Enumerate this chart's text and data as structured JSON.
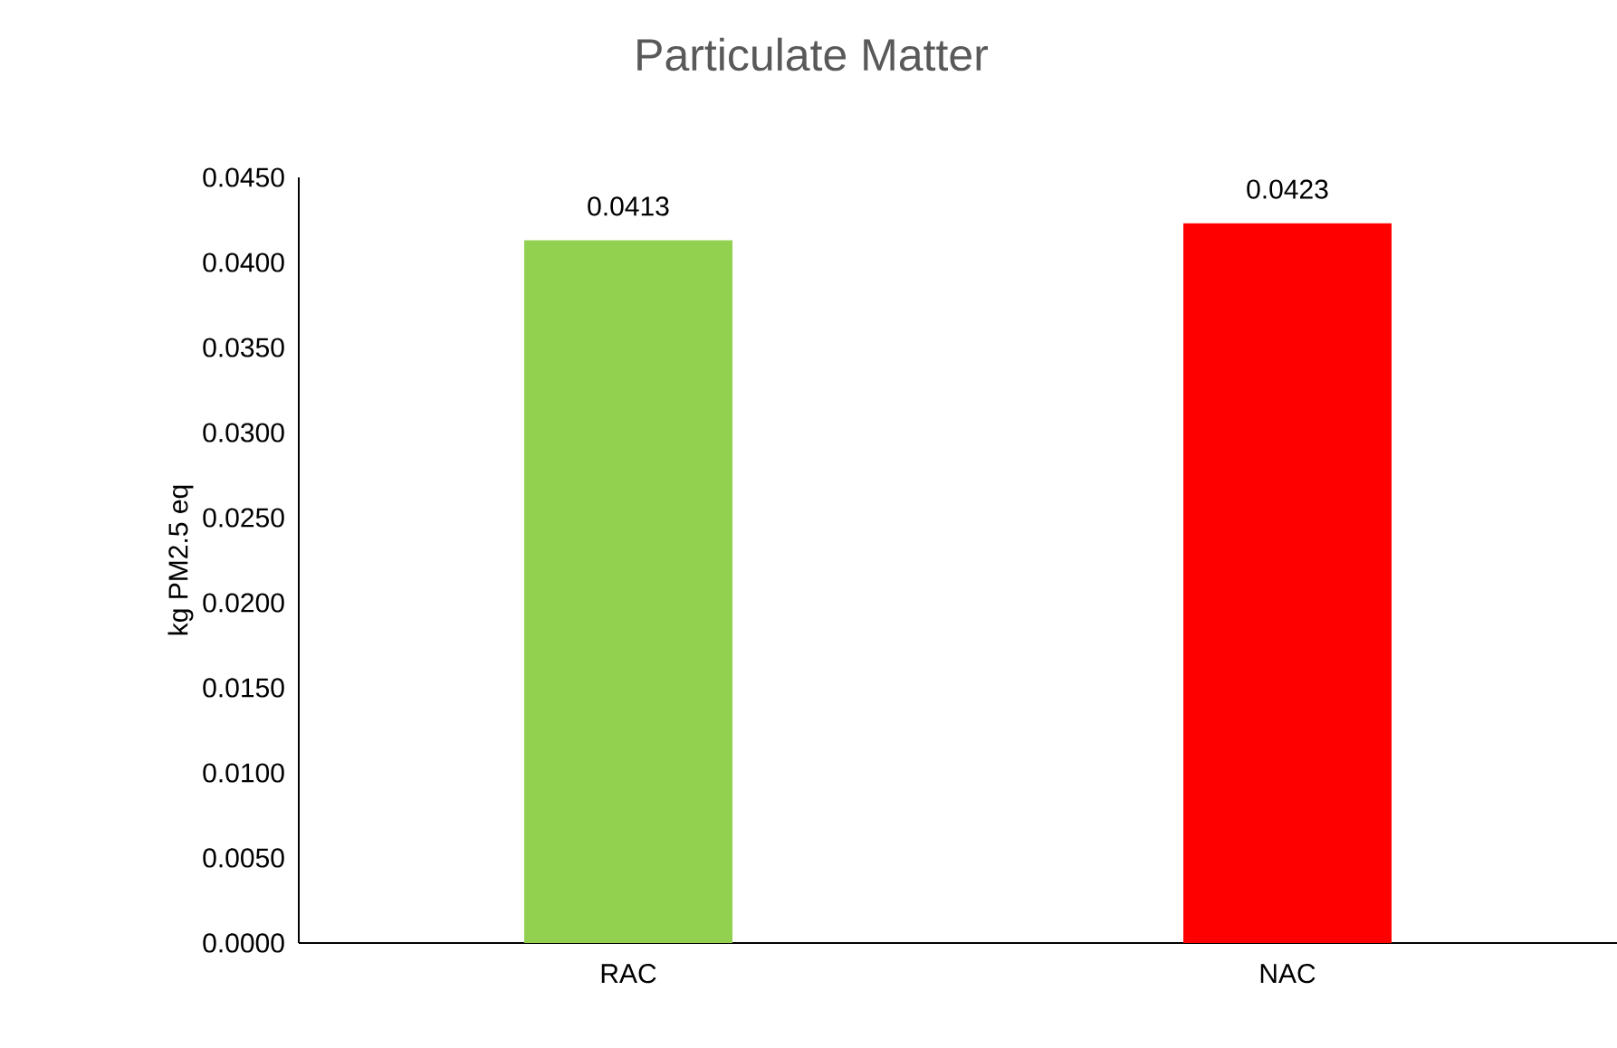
{
  "chart_data": {
    "type": "bar",
    "title": "Particulate Matter",
    "ylabel": "kg PM2.5 eq",
    "categories": [
      "RAC",
      "NAC"
    ],
    "values": [
      0.0413,
      0.0423
    ],
    "colors": [
      "#92d050",
      "#ff0000"
    ],
    "ylim": [
      0,
      0.045
    ],
    "yticks": [
      {
        "value": 0,
        "label": "0.0000"
      },
      {
        "value": 0.005,
        "label": "0.0050"
      },
      {
        "value": 0.01,
        "label": "0.0100"
      },
      {
        "value": 0.015,
        "label": "0.0150"
      },
      {
        "value": 0.02,
        "label": "0.0200"
      },
      {
        "value": 0.025,
        "label": "0.0250"
      },
      {
        "value": 0.03,
        "label": "0.0300"
      },
      {
        "value": 0.035,
        "label": "0.0350"
      },
      {
        "value": 0.04,
        "label": "0.0400"
      },
      {
        "value": 0.045,
        "label": "0.0450"
      }
    ],
    "data_labels": true
  }
}
